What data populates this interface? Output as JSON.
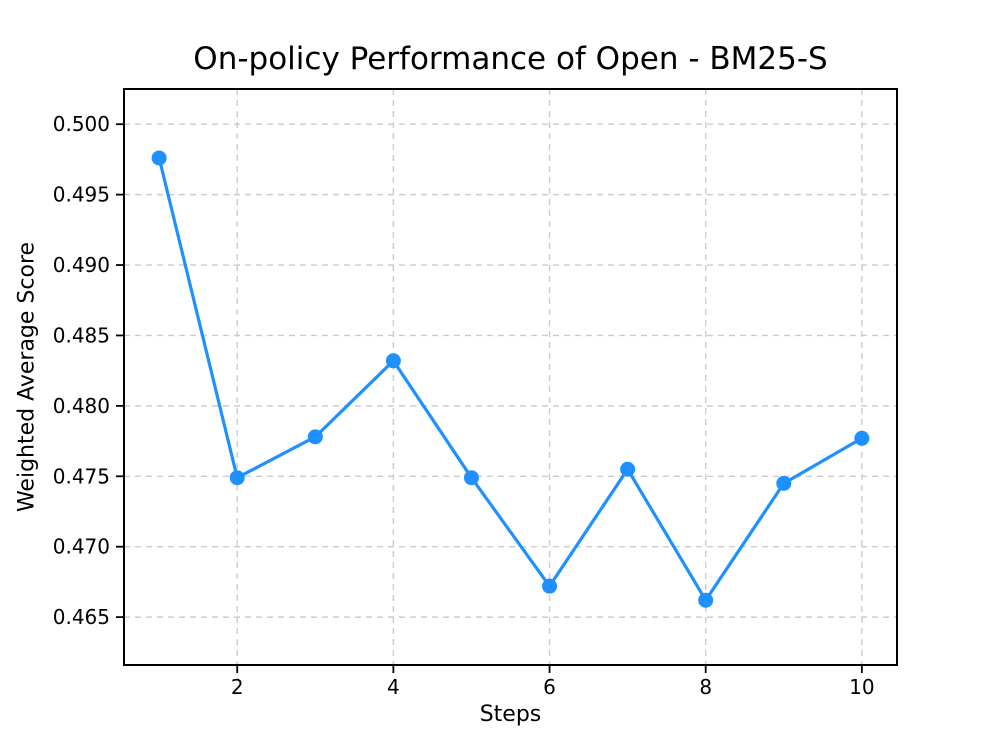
{
  "chart_data": {
    "type": "line",
    "title": "On-policy Performance of Open - BM25-S",
    "xlabel": "Steps",
    "ylabel": "Weighted Average Score",
    "x": [
      1,
      2,
      3,
      4,
      5,
      6,
      7,
      8,
      9,
      10
    ],
    "y": [
      0.4976,
      0.4749,
      0.4778,
      0.4832,
      0.4749,
      0.4672,
      0.4755,
      0.4662,
      0.4745,
      0.4777
    ],
    "xlim": [
      0.55,
      10.45
    ],
    "ylim": [
      0.4616,
      0.5025
    ],
    "xticks": [
      2,
      4,
      6,
      8,
      10
    ],
    "xtick_labels": [
      "2",
      "4",
      "6",
      "8",
      "10"
    ],
    "yticks": [
      0.465,
      0.47,
      0.475,
      0.48,
      0.485,
      0.49,
      0.495,
      0.5
    ],
    "ytick_labels": [
      "0.465",
      "0.470",
      "0.475",
      "0.480",
      "0.485",
      "0.490",
      "0.495",
      "0.500"
    ],
    "grid": true,
    "grid_style": "dashed",
    "legend_position": "none",
    "line_color": "#1E90FF",
    "marker": "o",
    "grid_color": "#cccccc",
    "axis_color": "#000000",
    "background_color": "#ffffff",
    "text_color": "#000000"
  }
}
